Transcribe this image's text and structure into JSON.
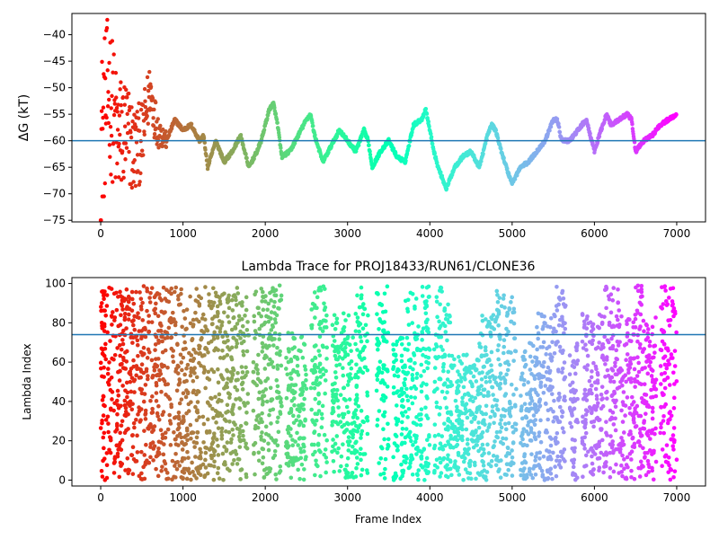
{
  "chart_data": [
    {
      "type": "scatter",
      "title": "",
      "xlabel": "",
      "ylabel": "ΔG (kT)",
      "xlim": [
        -350,
        7350
      ],
      "ylim": [
        -75.3,
        -36
      ],
      "xticks": [
        0,
        1000,
        2000,
        3000,
        4000,
        5000,
        6000,
        7000
      ],
      "yticks": [
        -75,
        -70,
        -65,
        -60,
        -55,
        -50,
        -45,
        -40
      ],
      "hline": -60,
      "hline_color": "#1f77b4",
      "colormap": "rainbow",
      "colormap_direction": "red at frame 0 to violet at last frame",
      "n_points": 7000,
      "anchors": {
        "x": [
          0,
          50,
          100,
          200,
          300,
          400,
          500,
          600,
          650,
          700,
          800,
          900,
          1000,
          1100,
          1200,
          1250,
          1300,
          1400,
          1500,
          1600,
          1700,
          1800,
          1900,
          1950,
          2050,
          2100,
          2150,
          2200,
          2300,
          2400,
          2500,
          2550,
          2600,
          2700,
          2800,
          2900,
          3000,
          3100,
          3200,
          3250,
          3300,
          3400,
          3500,
          3600,
          3700,
          3800,
          3900,
          3950,
          4050,
          4100,
          4200,
          4300,
          4400,
          4500,
          4600,
          4700,
          4750,
          4800,
          4850,
          4950,
          5000,
          5100,
          5200,
          5300,
          5400,
          5500,
          5550,
          5600,
          5700,
          5800,
          5900,
          6000,
          6100,
          6150,
          6200,
          6300,
          6400,
          6450,
          6500,
          6600,
          6700,
          6800,
          6900,
          7000
        ],
        "y": [
          -60,
          -55,
          -50,
          -60,
          -58,
          -62,
          -60,
          -50,
          -55,
          -58,
          -60,
          -56,
          -58,
          -57,
          -60,
          -59,
          -65,
          -60,
          -64,
          -62,
          -59,
          -65,
          -62,
          -60,
          -54,
          -53,
          -57,
          -63,
          -62,
          -59,
          -56,
          -55,
          -59,
          -64,
          -61,
          -58,
          -60,
          -62,
          -58,
          -60,
          -65,
          -62,
          -60,
          -63,
          -64,
          -57,
          -56,
          -54,
          -62,
          -65,
          -69,
          -65,
          -63,
          -62,
          -65,
          -59,
          -57,
          -58,
          -61,
          -66,
          -68,
          -65,
          -64,
          -62,
          -60,
          -56,
          -56,
          -60,
          -60,
          -58,
          -56,
          -62,
          -57,
          -55,
          -57,
          -56,
          -55,
          -56,
          -62,
          -60,
          -59,
          -57,
          -56,
          -55
        ]
      },
      "early_spread": {
        "frames": [
          0,
          800
        ],
        "amplitude": [
          15,
          1.5
        ]
      }
    },
    {
      "type": "scatter",
      "title": "Lambda Trace for PROJ18433/RUN61/CLONE36",
      "xlabel": "Frame Index",
      "ylabel": "Lambda Index",
      "xlim": [
        -350,
        7350
      ],
      "ylim": [
        -3,
        103
      ],
      "xticks": [
        0,
        1000,
        2000,
        3000,
        4000,
        5000,
        6000,
        7000
      ],
      "yticks": [
        0,
        20,
        40,
        60,
        80,
        100
      ],
      "hline": 74,
      "hline_color": "#1f77b4",
      "colormap": "rainbow",
      "n_points": 7000,
      "value_range": [
        0,
        99
      ],
      "sampled_bands": [
        {
          "x": [
            0,
            150
          ],
          "y": [
            0,
            99
          ]
        },
        {
          "x": [
            150,
            260
          ],
          "y": [
            0,
            99
          ]
        },
        {
          "x": [
            260,
            650
          ],
          "y": [
            0,
            99
          ]
        },
        {
          "x": [
            650,
            1250
          ],
          "y": [
            0,
            99
          ]
        },
        {
          "x": [
            1250,
            1500
          ],
          "y": [
            0,
            99
          ]
        },
        {
          "x": [
            1500,
            1800
          ],
          "y": [
            0,
            99
          ]
        },
        {
          "x": [
            1850,
            2200
          ],
          "y": [
            0,
            99
          ]
        },
        {
          "x": [
            2250,
            2500
          ],
          "y": [
            0,
            75
          ]
        },
        {
          "x": [
            2550,
            2750
          ],
          "y": [
            0,
            99
          ]
        },
        {
          "x": [
            2800,
            3100
          ],
          "y": [
            0,
            85
          ]
        },
        {
          "x": [
            3100,
            3250
          ],
          "y": [
            0,
            99
          ]
        },
        {
          "x": [
            3350,
            3500
          ],
          "y": [
            0,
            99
          ]
        },
        {
          "x": [
            3550,
            3700
          ],
          "y": [
            0,
            75
          ]
        },
        {
          "x": [
            3700,
            4000
          ],
          "y": [
            0,
            99
          ]
        },
        {
          "x": [
            4050,
            4250
          ],
          "y": [
            0,
            99
          ]
        },
        {
          "x": [
            4250,
            4600
          ],
          "y": [
            0,
            64
          ]
        },
        {
          "x": [
            4600,
            4800
          ],
          "y": [
            0,
            85
          ]
        },
        {
          "x": [
            4800,
            5050
          ],
          "y": [
            0,
            99
          ]
        },
        {
          "x": [
            5100,
            5300
          ],
          "y": [
            0,
            70
          ]
        },
        {
          "x": [
            5300,
            5500
          ],
          "y": [
            0,
            85
          ]
        },
        {
          "x": [
            5500,
            5650
          ],
          "y": [
            0,
            99
          ]
        },
        {
          "x": [
            5700,
            5800
          ],
          "y": [
            0,
            70
          ]
        },
        {
          "x": [
            5850,
            6100
          ],
          "y": [
            0,
            85
          ]
        },
        {
          "x": [
            6100,
            6300
          ],
          "y": [
            0,
            99
          ]
        },
        {
          "x": [
            6300,
            6500
          ],
          "y": [
            0,
            85
          ]
        },
        {
          "x": [
            6500,
            6600
          ],
          "y": [
            0,
            99
          ]
        },
        {
          "x": [
            6600,
            6750
          ],
          "y": [
            0,
            85
          ]
        },
        {
          "x": [
            6800,
            7000
          ],
          "y": [
            0,
            99
          ]
        }
      ]
    }
  ]
}
